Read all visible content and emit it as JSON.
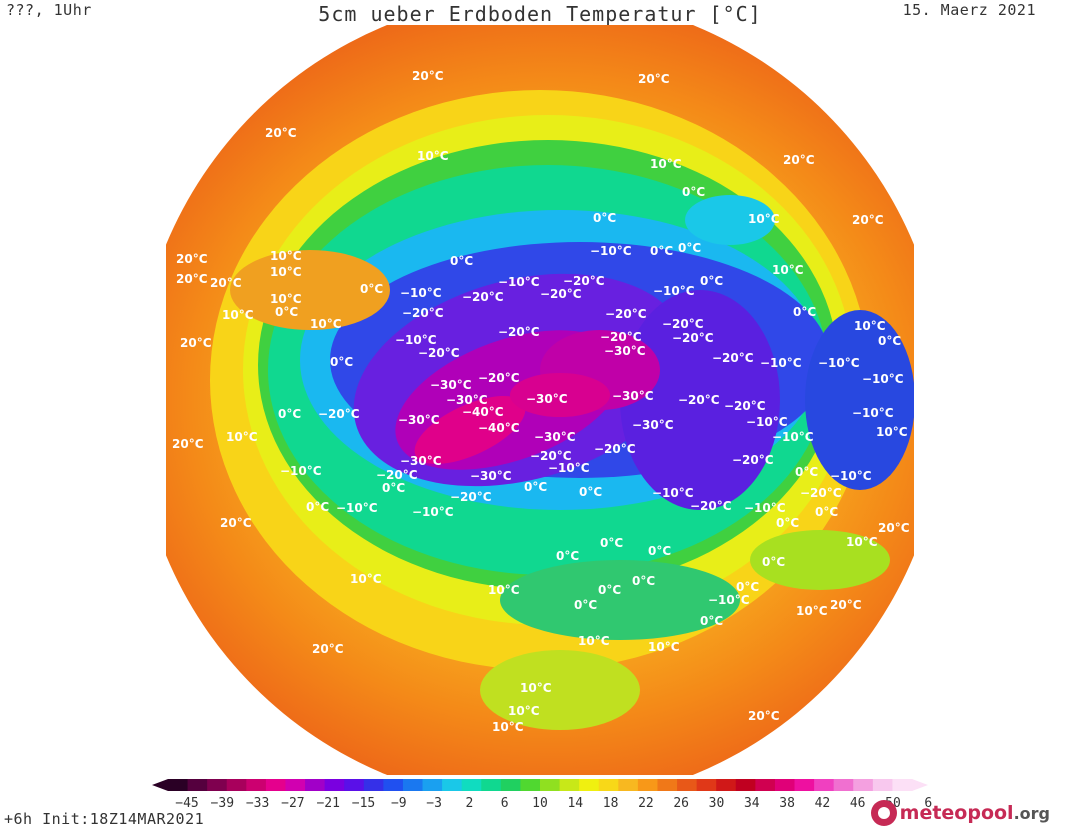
{
  "header": {
    "left": "???, 1Uhr",
    "title": "5cm ueber Erdboden Temperatur [°C]",
    "date": "15. Maerz 2021"
  },
  "footer": {
    "run": "+6h  Init:18Z14MAR2021",
    "logo_main": "meteopool",
    "logo_suffix": ".org"
  },
  "map": {
    "labels": {
      "twenty": "20°C",
      "ten": "10°C",
      "zero": "0°C",
      "minus_ten": "−10°C",
      "minus_twenty": "−20°C",
      "minus_thirty": "−30°C",
      "minus_forty": "−40°C"
    },
    "icon": "map-disc"
  },
  "color_scale": {
    "ticks": [
      "−45",
      "−39",
      "−33",
      "−27",
      "−21",
      "−15",
      "−9",
      "−3",
      "2",
      "6",
      "10",
      "14",
      "18",
      "22",
      "26",
      "30",
      "34",
      "38",
      "42",
      "46",
      "50",
      "6"
    ],
    "colors": [
      "#2a0025",
      "#55003e",
      "#7f004f",
      "#a8005c",
      "#cc0070",
      "#e5008d",
      "#d100b0",
      "#a100c8",
      "#7a00e0",
      "#5a10e8",
      "#3530e8",
      "#2050f0",
      "#1a78f0",
      "#1aa0f0",
      "#1ac8e8",
      "#10dcc0",
      "#10d890",
      "#20d060",
      "#50d830",
      "#90e020",
      "#c8e818",
      "#f0f010",
      "#f8d818",
      "#f8b820",
      "#f89818",
      "#f07818",
      "#e85818",
      "#e03818",
      "#d01818",
      "#c00020",
      "#d00050",
      "#e00078",
      "#ee10a0",
      "#f040c0",
      "#f070d0",
      "#f4a0e0",
      "#f8c8ee",
      "#fce0f6"
    ]
  }
}
